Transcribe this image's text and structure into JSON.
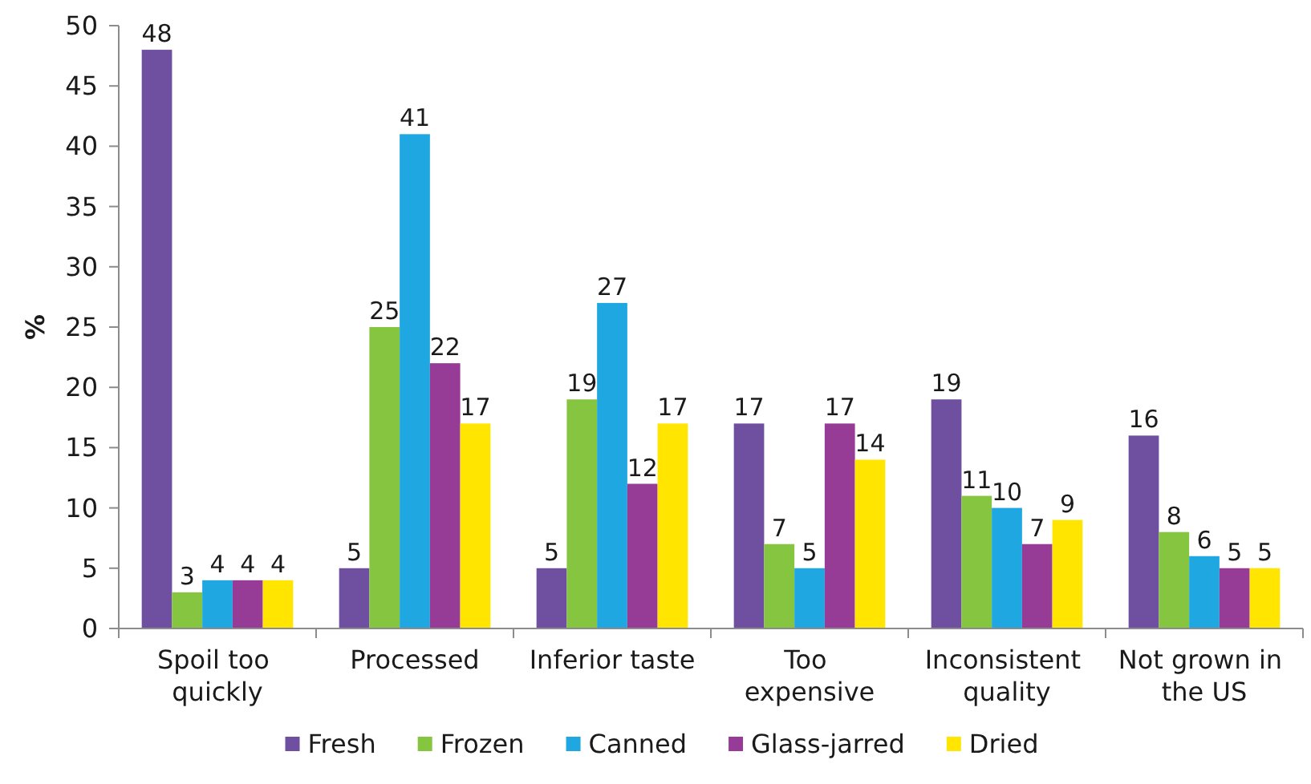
{
  "chart_data": {
    "type": "bar",
    "ylabel": "%",
    "categories": [
      "Spoil too quickly",
      "Processed",
      "Inferior taste",
      "Too expensive",
      "Inconsistent quality",
      "Not grown in the US"
    ],
    "series": [
      {
        "name": "Fresh",
        "color": "#6f4fa0",
        "values": [
          48,
          5,
          5,
          17,
          19,
          16
        ]
      },
      {
        "name": "Frozen",
        "color": "#86c540",
        "values": [
          3,
          25,
          19,
          7,
          11,
          8
        ]
      },
      {
        "name": "Canned",
        "color": "#1ea7e1",
        "values": [
          4,
          41,
          27,
          5,
          10,
          6
        ]
      },
      {
        "name": "Glass-jarred",
        "color": "#963c97",
        "values": [
          4,
          22,
          12,
          17,
          7,
          5
        ]
      },
      {
        "name": "Dried",
        "color": "#ffe500",
        "values": [
          4,
          17,
          17,
          14,
          9,
          5
        ]
      }
    ],
    "ylim": [
      0,
      50
    ],
    "yticks": [
      0,
      5,
      10,
      15,
      20,
      25,
      30,
      35,
      40,
      45,
      50
    ],
    "legend": "bottom",
    "data_labels": true
  }
}
